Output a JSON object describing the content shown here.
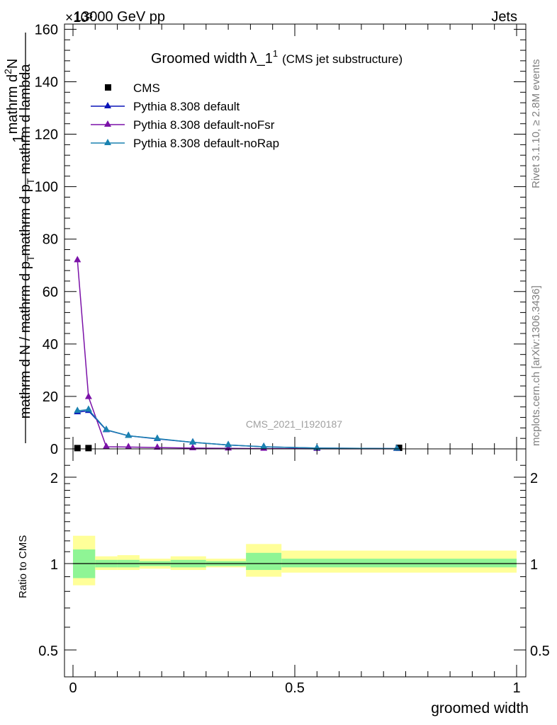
{
  "header": {
    "energy_label": "13000 GeV pp",
    "process_label": "Jets",
    "exponent_label": "×10³"
  },
  "side_labels": {
    "rivet": "Rivet 3.1.10, ≥ 2.8M events",
    "mcplots": "mcplots.cern.ch [arXiv:1306.3436]"
  },
  "chart_data": [
    {
      "type": "line",
      "title": "Groomed width",
      "title_symbol": "λ_1",
      "title_superscript": "1",
      "subtitle": "(CMS jet substructure)",
      "analysis_label": "CMS_2021_I1920187",
      "ylabel": "1 / mathrm d N / mathrm d p_T mathrm d p_T mathrm d lambda mathrm d^2N",
      "ylabel_parts": {
        "numerator": "1",
        "denominator": "mathrm d N / mathrm d p",
        "denominator_sub": "T",
        "fraction_top": "mathrm d",
        "fraction_top_sup": "2",
        "fraction_top_end": "N",
        "fraction_bottom": "mathrm d p",
        "fraction_bottom_sub": "T",
        "fraction_bottom_end": " mathrm d lambda"
      },
      "y_scale_factor": "×10³",
      "xlim": [
        -0.02,
        1.01
      ],
      "ylim": [
        0,
        162
      ],
      "y_ticks": [
        "0",
        "20",
        "40",
        "60",
        "80",
        "100",
        "120",
        "140",
        "160"
      ],
      "legend_position": "top-left",
      "legend": [
        "CMS",
        "Pythia 8.308 default",
        "Pythia 8.308 default-noFsr",
        "Pythia 8.308 default-noRap"
      ],
      "series": [
        {
          "name": "CMS",
          "color": "#000000",
          "marker": "square",
          "x": [
            0.01,
            0.035,
            0.735
          ],
          "y": [
            0.3,
            0.3,
            0.4
          ]
        },
        {
          "name": "Pythia 8.308 default",
          "color": "#0a14b8",
          "marker": "triangle",
          "x": [
            0.01,
            0.035,
            0.075,
            0.125,
            0.19,
            0.27,
            0.35,
            0.43,
            0.55,
            0.73
          ],
          "y": [
            14.0,
            14.5,
            7.2,
            5.0,
            3.8,
            2.5,
            1.5,
            0.8,
            0.3,
            0.1
          ]
        },
        {
          "name": "Pythia 8.308 default-noFsr",
          "color": "#7b12a8",
          "marker": "triangle",
          "x": [
            0.01,
            0.035,
            0.075,
            0.125,
            0.19,
            0.27,
            0.35,
            0.43,
            0.55,
            0.73
          ],
          "y": [
            72.0,
            19.8,
            0.8,
            0.7,
            0.5,
            0.3,
            0.2,
            0.1,
            0.05,
            0.02
          ]
        },
        {
          "name": "Pythia 8.308 default-noRap",
          "color": "#1a82b0",
          "marker": "triangle",
          "x": [
            0.01,
            0.035,
            0.075,
            0.125,
            0.19,
            0.27,
            0.35,
            0.43,
            0.55,
            0.73
          ],
          "y": [
            14.5,
            15.0,
            7.3,
            5.0,
            3.9,
            2.5,
            1.5,
            0.8,
            0.3,
            0.1
          ]
        }
      ]
    },
    {
      "type": "area",
      "ylabel": "Ratio to CMS",
      "xlabel": "groomed width",
      "xlim": [
        -0.02,
        1.01
      ],
      "ylim": [
        0.4,
        2.4
      ],
      "y_scale": "log",
      "x_ticks": [
        "0",
        "0.5",
        "1"
      ],
      "y_ticks": [
        "0.5",
        "1",
        "2"
      ],
      "colors": {
        "outer_band": "#ffff99",
        "inner_band": "#8ff595",
        "reference_line": "#000000"
      },
      "bands": [
        {
          "x0": 0.0,
          "x1": 0.05,
          "stat_lo": 0.89,
          "stat_hi": 1.12,
          "total_lo": 0.84,
          "total_hi": 1.25
        },
        {
          "x0": 0.05,
          "x1": 0.1,
          "stat_lo": 0.97,
          "stat_hi": 1.03,
          "total_lo": 0.95,
          "total_hi": 1.06
        },
        {
          "x0": 0.1,
          "x1": 0.15,
          "stat_lo": 0.97,
          "stat_hi": 1.03,
          "total_lo": 0.95,
          "total_hi": 1.07
        },
        {
          "x0": 0.15,
          "x1": 0.22,
          "stat_lo": 0.98,
          "stat_hi": 1.02,
          "total_lo": 0.96,
          "total_hi": 1.04
        },
        {
          "x0": 0.22,
          "x1": 0.3,
          "stat_lo": 0.97,
          "stat_hi": 1.03,
          "total_lo": 0.95,
          "total_hi": 1.06
        },
        {
          "x0": 0.3,
          "x1": 0.39,
          "stat_lo": 0.98,
          "stat_hi": 1.02,
          "total_lo": 0.97,
          "total_hi": 1.04
        },
        {
          "x0": 0.39,
          "x1": 0.47,
          "stat_lo": 0.95,
          "stat_hi": 1.09,
          "total_lo": 0.9,
          "total_hi": 1.17
        },
        {
          "x0": 0.47,
          "x1": 1.0,
          "stat_lo": 0.97,
          "stat_hi": 1.04,
          "total_lo": 0.93,
          "total_hi": 1.11
        }
      ]
    }
  ]
}
